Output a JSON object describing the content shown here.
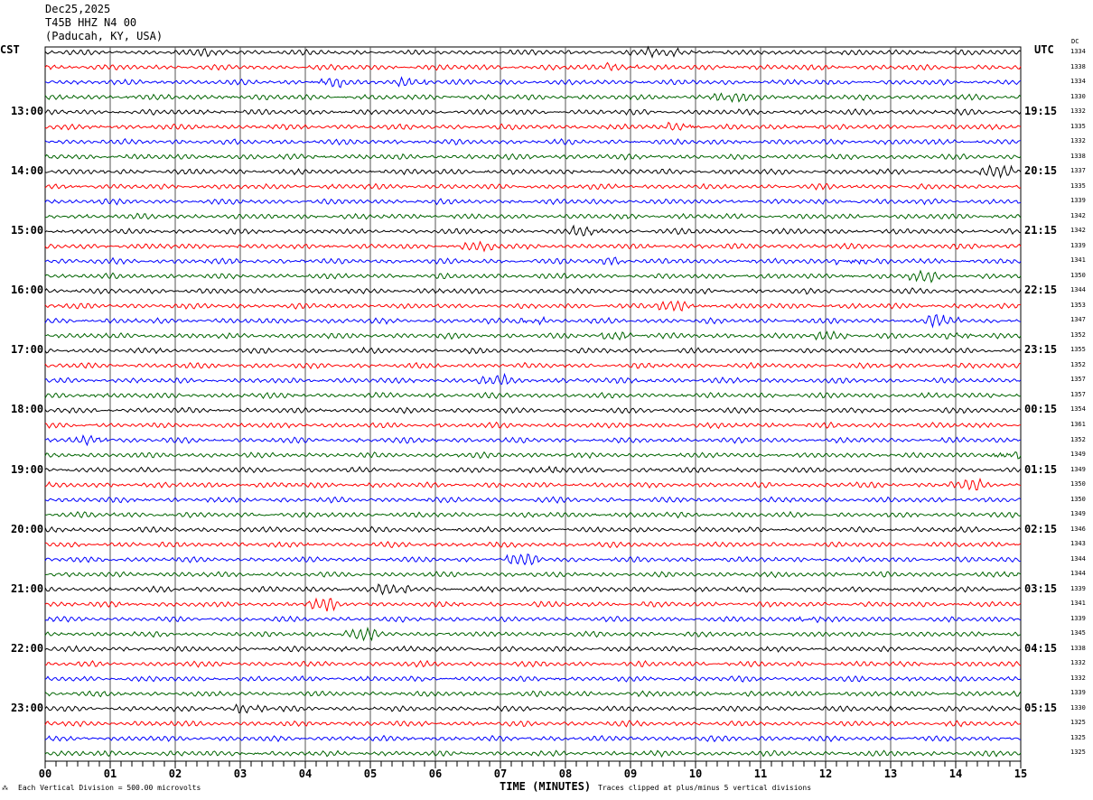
{
  "header": {
    "date": "Dec25,2025",
    "station": "T45B HHZ N4 00",
    "location": "(Paducah, KY, USA)"
  },
  "chart_data": {
    "type": "line",
    "title": "Dec25,2025 T45B HHZ N4 00 (Paducah, KY, USA)",
    "xlabel": "TIME (MINUTES)",
    "x_ticks": [
      "00",
      "01",
      "02",
      "03",
      "04",
      "05",
      "06",
      "07",
      "08",
      "09",
      "10",
      "11",
      "12",
      "13",
      "14",
      "15"
    ],
    "xlim": [
      0,
      15
    ],
    "left_axis_label": "CST",
    "right_axis_label": "UTC",
    "dc_label": "DC",
    "left_hour_labels": [
      "13:00",
      "14:00",
      "15:00",
      "16:00",
      "17:00",
      "18:00",
      "19:00",
      "20:00",
      "21:00",
      "22:00",
      "23:00"
    ],
    "right_hour_labels": [
      "19:15",
      "20:15",
      "21:15",
      "22:15",
      "23:15",
      "00:15",
      "01:15",
      "02:15",
      "03:15",
      "04:15",
      "05:15"
    ],
    "trace_colors": [
      "#000000",
      "#ff0000",
      "#0000ff",
      "#006400"
    ],
    "dc_offsets": [
      1334,
      1338,
      1334,
      1330,
      1332,
      1335,
      1332,
      1338,
      1337,
      1335,
      1339,
      1342,
      1342,
      1339,
      1341,
      1350,
      1344,
      1353,
      1347,
      1352,
      1355,
      1352,
      1357,
      1357,
      1354,
      1361,
      1352,
      1349,
      1349,
      1350,
      1350,
      1349,
      1346,
      1343,
      1344,
      1344,
      1339,
      1341,
      1339,
      1345,
      1338,
      1332,
      1332,
      1339,
      1330,
      1325,
      1325,
      1325
    ],
    "scale_note": "Each Vertical Division =  500.00 microvolts",
    "clip_note": "Traces clipped at plus/minus 5 vertical divisions"
  }
}
